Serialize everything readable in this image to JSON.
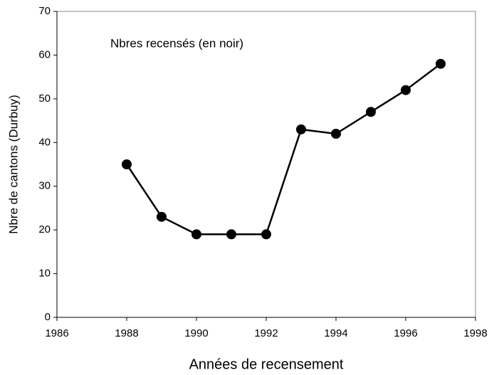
{
  "chart_data": {
    "type": "line",
    "annotation": "Nbres recensés (en noir)",
    "xlabel": "Années de recensement",
    "ylabel": "Nbre de cantons (Durbuy)",
    "x": [
      1988,
      1989,
      1990,
      1991,
      1992,
      1993,
      1994,
      1995,
      1996,
      1997
    ],
    "values": [
      35,
      23,
      19,
      19,
      19,
      43,
      42,
      47,
      52,
      58
    ],
    "color": "#000000",
    "xlim": [
      1986,
      1998
    ],
    "xticks": [
      1986,
      1988,
      1990,
      1992,
      1994,
      1996,
      1998
    ],
    "ylim": [
      0,
      70
    ],
    "yticks": [
      0,
      10,
      20,
      30,
      40,
      50,
      60,
      70
    ],
    "grid": false
  }
}
